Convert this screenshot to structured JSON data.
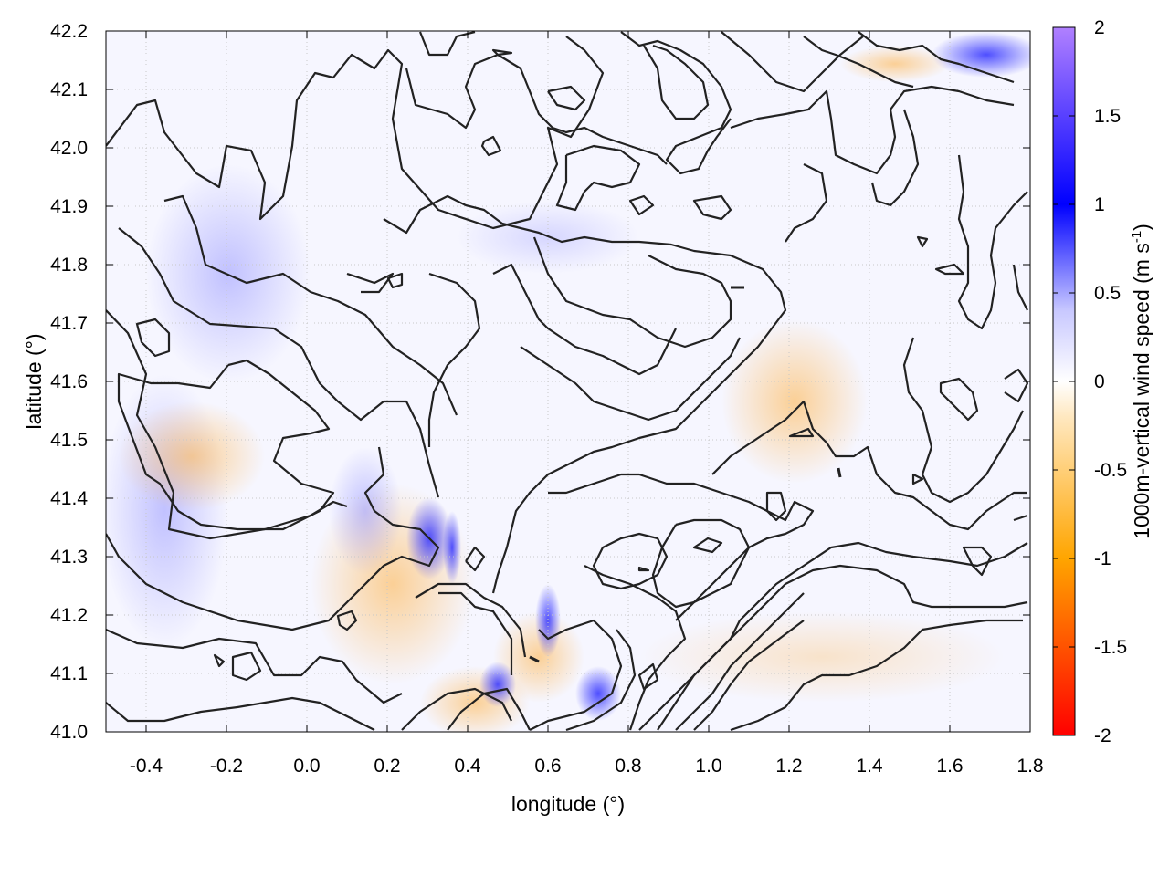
{
  "chart_data": {
    "type": "heatmap",
    "title": "",
    "xlabel": "longitude (°)",
    "ylabel": "latitude (°)",
    "colorbar_label": "1000m-vertical wind speed (m s",
    "colorbar_label_sup": "-1",
    "colorbar_label_end": ")",
    "xlim": [
      -0.5,
      1.8
    ],
    "ylim": [
      41.0,
      42.2
    ],
    "zlim": [
      -2,
      2
    ],
    "xticks": [
      "-0.4",
      "-0.2",
      "0.0",
      "0.2",
      "0.4",
      "0.6",
      "0.8",
      "1.0",
      "1.2",
      "1.4",
      "1.6",
      "1.8"
    ],
    "xtick_values": [
      -0.4,
      -0.2,
      0.0,
      0.2,
      0.4,
      0.6,
      0.8,
      1.0,
      1.2,
      1.4,
      1.6,
      1.8
    ],
    "yticks": [
      "41.0",
      "41.1",
      "41.2",
      "41.3",
      "41.4",
      "41.5",
      "41.6",
      "41.7",
      "41.8",
      "41.9",
      "42.0",
      "42.1",
      "42.2"
    ],
    "ytick_values": [
      41.0,
      41.1,
      41.2,
      41.3,
      41.4,
      41.5,
      41.6,
      41.7,
      41.8,
      41.9,
      42.0,
      42.1,
      42.2
    ],
    "cbticks": [
      "-2",
      "-1.5",
      "-1",
      "-0.5",
      "0",
      "0.5",
      "1",
      "1.5",
      "2"
    ],
    "cbtick_values": [
      -2,
      -1.5,
      -1,
      -0.5,
      0,
      0.5,
      1,
      1.5,
      2
    ],
    "grid": true,
    "colormap": [
      "#ff0000",
      "#ff8c00",
      "#ffd27a",
      "#ffffff",
      "#b8b8ff",
      "#0000ff",
      "#a070ff"
    ],
    "contour_color": "#222222"
  }
}
